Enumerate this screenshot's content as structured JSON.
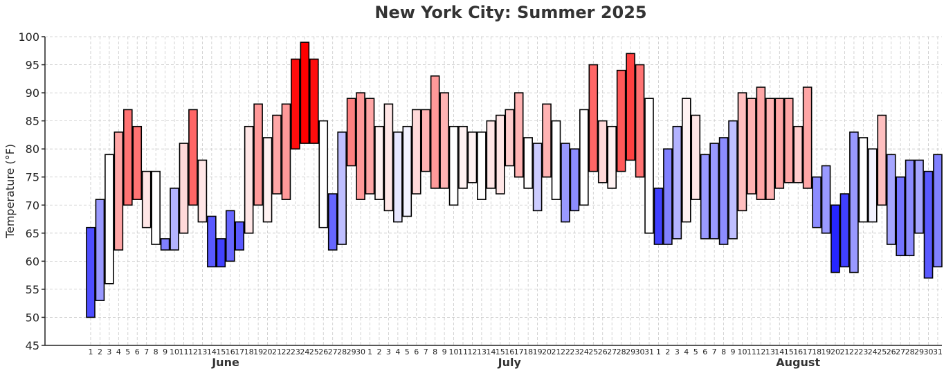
{
  "chart_data": {
    "type": "bar",
    "subtype": "floating-range",
    "title": "New York City: Summer 2025",
    "ylabel": "Temperature (°F)",
    "ylim": [
      45,
      100
    ],
    "yticks": [
      45,
      50,
      55,
      60,
      65,
      70,
      75,
      80,
      85,
      90,
      95,
      100
    ],
    "grid": true,
    "color_scale": {
      "cold": "#0000ff",
      "neutral": "#ffffff",
      "hot": "#ff0000"
    },
    "months": [
      {
        "name": "June",
        "days": [
          1,
          2,
          3,
          4,
          5,
          6,
          7,
          8,
          9,
          10,
          11,
          12,
          13,
          14,
          15,
          16,
          17,
          18,
          19,
          20,
          21,
          22,
          23,
          24,
          25,
          26,
          27,
          28,
          29,
          30
        ],
        "lows": [
          50,
          53,
          56,
          62,
          70,
          71,
          66,
          63,
          62,
          62,
          65,
          70,
          67,
          59,
          59,
          60,
          62,
          65,
          70,
          67,
          72,
          71,
          80,
          81,
          81,
          66,
          62,
          63,
          77,
          71
        ],
        "highs": [
          66,
          71,
          79,
          83,
          87,
          84,
          76,
          76,
          64,
          73,
          81,
          87,
          78,
          68,
          64,
          69,
          67,
          84,
          88,
          82,
          86,
          88,
          96,
          99,
          96,
          85,
          72,
          83,
          89,
          90
        ],
        "anomaly": [
          -0.7,
          -0.4,
          0.0,
          0.35,
          0.55,
          0.55,
          0.1,
          0.0,
          -0.5,
          -0.3,
          0.15,
          0.6,
          0.1,
          -0.65,
          -0.75,
          -0.6,
          -0.65,
          0.1,
          0.4,
          0.05,
          0.35,
          0.4,
          0.95,
          1.0,
          0.95,
          0.0,
          -0.6,
          -0.25,
          0.5,
          0.4
        ]
      },
      {
        "name": "July",
        "days": [
          1,
          2,
          3,
          4,
          5,
          6,
          7,
          8,
          9,
          10,
          11,
          12,
          13,
          14,
          15,
          16,
          17,
          18,
          19,
          20,
          21,
          22,
          23,
          24,
          25,
          26,
          27,
          28,
          29,
          30,
          31
        ],
        "lows": [
          72,
          71,
          69,
          67,
          68,
          72,
          76,
          73,
          73,
          70,
          73,
          74,
          71,
          73,
          72,
          77,
          75,
          73,
          69,
          75,
          71,
          67,
          69,
          70,
          76,
          74,
          73,
          76,
          78,
          75,
          65
        ],
        "highs": [
          89,
          84,
          88,
          83,
          84,
          87,
          87,
          93,
          90,
          84,
          84,
          83,
          83,
          85,
          86,
          87,
          90,
          82,
          81,
          88,
          85,
          81,
          80,
          87,
          95,
          85,
          84,
          94,
          97,
          95,
          89
        ],
        "anomaly": [
          0.35,
          0.05,
          0.1,
          -0.1,
          -0.05,
          0.15,
          0.3,
          0.4,
          0.3,
          0.0,
          0.05,
          0.05,
          0.0,
          0.1,
          0.1,
          0.2,
          0.3,
          0.0,
          -0.2,
          0.3,
          0.0,
          -0.4,
          -0.45,
          0.0,
          0.6,
          0.15,
          0.05,
          0.65,
          0.75,
          0.55,
          0.0
        ]
      },
      {
        "name": "August",
        "days": [
          1,
          2,
          3,
          4,
          5,
          6,
          7,
          8,
          9,
          10,
          11,
          12,
          13,
          14,
          15,
          16,
          17,
          18,
          19,
          20,
          21,
          22,
          23,
          24,
          25,
          26,
          27,
          28,
          29,
          30,
          31
        ],
        "lows": [
          63,
          63,
          64,
          67,
          71,
          64,
          64,
          63,
          64,
          69,
          72,
          71,
          71,
          73,
          74,
          74,
          73,
          66,
          65,
          58,
          59,
          58,
          67,
          67,
          70,
          63,
          61,
          61,
          65,
          57,
          59
        ],
        "highs": [
          73,
          80,
          84,
          89,
          86,
          79,
          81,
          82,
          85,
          90,
          89,
          91,
          89,
          89,
          89,
          84,
          91,
          75,
          77,
          70,
          72,
          83,
          82,
          80,
          86,
          79,
          75,
          78,
          78,
          76,
          79
        ],
        "anomaly": [
          -0.75,
          -0.5,
          -0.3,
          0.05,
          0.1,
          -0.4,
          -0.4,
          -0.45,
          -0.25,
          0.25,
          0.3,
          0.35,
          0.3,
          0.35,
          0.35,
          0.2,
          0.35,
          -0.45,
          -0.4,
          -0.85,
          -0.75,
          -0.4,
          0.0,
          -0.05,
          0.25,
          -0.35,
          -0.55,
          -0.45,
          -0.35,
          -0.65,
          -0.5
        ]
      }
    ]
  }
}
